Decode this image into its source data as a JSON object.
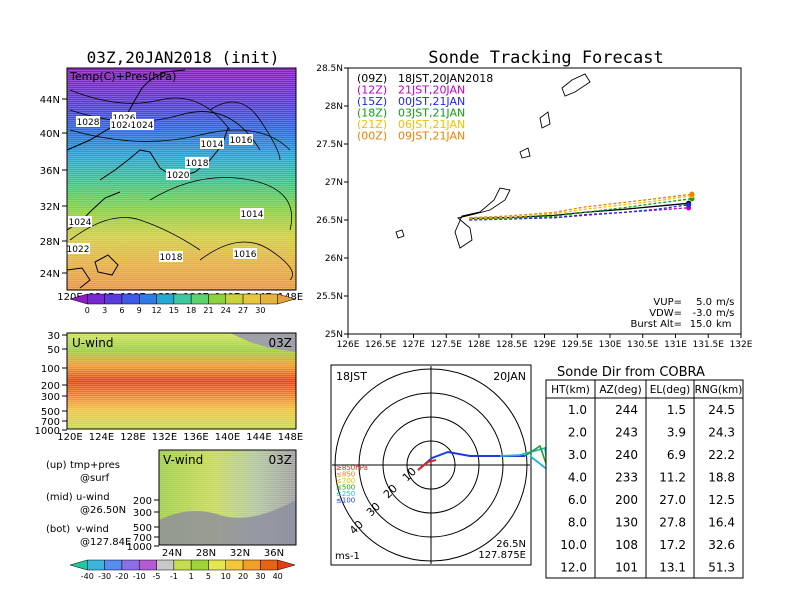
{
  "left": {
    "title": "03Z,20JAN2018 (init)",
    "map_label": "Temp(C)+Pres(hPa)",
    "lat_ticks": [
      "44N",
      "40N",
      "36N",
      "32N",
      "28N",
      "24N"
    ],
    "lon_ticks": [
      "120E",
      "124E",
      "128E",
      "132E",
      "136E",
      "140E",
      "144E",
      "148E"
    ],
    "pressure_labels": [
      "1028",
      "1026",
      "1024",
      "1024",
      "1014",
      "1016",
      "1018",
      "1020",
      "1014",
      "1024",
      "1018",
      "1016",
      "1022"
    ],
    "temp_colorbar": [
      "0",
      "3",
      "6",
      "9",
      "12",
      "15",
      "18",
      "21",
      "24",
      "27",
      "30"
    ],
    "uwind_title": "U-wind",
    "uwind_time": "03Z",
    "uwind_yticks": [
      "30",
      "50",
      "100",
      "200",
      "300",
      "500",
      "700",
      "1000"
    ],
    "vwind_title": "V-wind",
    "vwind_time": "03Z",
    "vwind_yticks": [
      "200",
      "300",
      "500",
      "700",
      "1000"
    ],
    "vwind_xticks": [
      "24N",
      "28N",
      "32N",
      "36N"
    ],
    "wind_colorbar": [
      "-40",
      "-30",
      "-20",
      "-10",
      "-5",
      "-1",
      "1",
      "5",
      "10",
      "20",
      "30",
      "40"
    ],
    "legend_lines": [
      {
        "a": "(up)",
        "b": "tmp+pres"
      },
      {
        "a": "",
        "b": "@surf"
      },
      {
        "a": "(mid)",
        "b": "u-wind"
      },
      {
        "a": "",
        "b": "@26.50N"
      },
      {
        "a": "(bot)",
        "b": "v-wind"
      },
      {
        "a": "",
        "b": "@127.84E"
      }
    ]
  },
  "track": {
    "title": "Sonde Tracking Forecast",
    "lat_ticks": [
      "28.5N",
      "28N",
      "27.5N",
      "27N",
      "26.5N",
      "26N",
      "25.5N",
      "25N"
    ],
    "lon_ticks": [
      "126E",
      "126.5E",
      "127E",
      "127.5E",
      "128E",
      "128.5E",
      "129E",
      "129.5E",
      "130E",
      "130.5E",
      "131E",
      "131.5E",
      "132E"
    ],
    "legend": [
      {
        "code": "(09Z)",
        "time": "18JST,20JAN2018",
        "color": "#000000"
      },
      {
        "code": "(12Z)",
        "time": "21JST,20JAN",
        "color": "#c000c0"
      },
      {
        "code": "(15Z)",
        "time": "00JST,21JAN",
        "color": "#1e28e6"
      },
      {
        "code": "(18Z)",
        "time": "03JST,21JAN",
        "color": "#10a010"
      },
      {
        "code": "(21Z)",
        "time": "06JST,21JAN",
        "color": "#f0c000"
      },
      {
        "code": "(00Z)",
        "time": "09JST,21JAN",
        "color": "#f08000"
      }
    ],
    "info": [
      {
        "label": "VUP=",
        "value": "5.0",
        "unit": "m/s"
      },
      {
        "label": "VDW=",
        "value": "-3.0",
        "unit": "m/s"
      },
      {
        "label": "Burst Alt=",
        "value": "15.0",
        "unit": "km"
      }
    ]
  },
  "polar": {
    "time_left": "18JST",
    "time_right": "20JAN",
    "ring_labels": [
      "10",
      "20",
      "30",
      "40"
    ],
    "pressure_legend": [
      {
        "text": "≥850hPa",
        "color": "#e62020"
      },
      {
        "text": "≤850",
        "color": "#f08000"
      },
      {
        "text": "≤700",
        "color": "#e6c000"
      },
      {
        "text": "≤500",
        "color": "#20a020"
      },
      {
        "text": "≤250",
        "color": "#20c0e0"
      },
      {
        "text": "≤100",
        "color": "#2040e0"
      }
    ],
    "unit": "ms-1",
    "pos_lat": "26.5N",
    "pos_lon": "127.875E"
  },
  "table": {
    "title": "Sonde Dir from COBRA",
    "headers": [
      "HT(km)",
      "AZ(deg)",
      "EL(deg)",
      "RNG(km)"
    ],
    "rows": [
      [
        "1.0",
        "244",
        "1.5",
        "24.5"
      ],
      [
        "2.0",
        "243",
        "3.9",
        "24.3"
      ],
      [
        "3.0",
        "240",
        "6.9",
        "22.2"
      ],
      [
        "4.0",
        "233",
        "11.2",
        "18.8"
      ],
      [
        "6.0",
        "200",
        "27.0",
        "12.5"
      ],
      [
        "8.0",
        "130",
        "27.8",
        "16.4"
      ],
      [
        "10.0",
        "108",
        "17.2",
        "32.6"
      ],
      [
        "12.0",
        "101",
        "13.1",
        "51.3"
      ]
    ]
  },
  "chart_data": [
    {
      "type": "line",
      "title": "Sonde Tracking Forecast",
      "xlim": [
        126,
        132
      ],
      "ylim": [
        25,
        28.5
      ],
      "series": [
        {
          "name": "(09Z) 18JST,20JAN2018",
          "x": [
            127.85,
            128.4,
            129.15,
            129.6,
            130.2,
            130.7,
            131.2
          ],
          "y": [
            26.52,
            26.53,
            26.56,
            26.6,
            26.64,
            26.68,
            26.72
          ]
        },
        {
          "name": "(12Z) 21JST,20JAN",
          "x": [
            127.85,
            128.4,
            129.15,
            129.6,
            130.2,
            130.7,
            131.2
          ],
          "y": [
            26.51,
            26.52,
            26.53,
            26.57,
            26.6,
            26.63,
            26.66
          ]
        },
        {
          "name": "(15Z) 00JST,21JAN",
          "x": [
            127.85,
            128.4,
            129.15,
            129.6,
            130.2,
            130.7,
            131.2
          ],
          "y": [
            26.5,
            26.51,
            26.53,
            26.56,
            26.6,
            26.64,
            26.7
          ]
        },
        {
          "name": "(18Z) 03JST,21JAN",
          "x": [
            127.85,
            128.4,
            129.15,
            129.6,
            130.2,
            130.7,
            131.25
          ],
          "y": [
            26.51,
            26.52,
            26.55,
            26.6,
            26.66,
            26.72,
            26.78
          ]
        },
        {
          "name": "(21Z) 06JST,21JAN",
          "x": [
            127.85,
            128.4,
            129.15,
            129.6,
            130.2,
            130.7,
            131.25
          ],
          "y": [
            26.52,
            26.53,
            26.58,
            26.64,
            26.7,
            26.75,
            26.82
          ]
        },
        {
          "name": "(00Z) 09JST,21JAN",
          "x": [
            127.85,
            128.4,
            129.15,
            129.6,
            130.2,
            130.7,
            131.25
          ],
          "y": [
            26.53,
            26.55,
            26.6,
            26.67,
            26.73,
            26.78,
            26.84
          ]
        }
      ]
    },
    {
      "type": "table",
      "title": "Sonde Dir from COBRA",
      "columns": [
        "HT(km)",
        "AZ(deg)",
        "EL(deg)",
        "RNG(km)"
      ],
      "rows": [
        [
          1.0,
          244,
          1.5,
          24.5
        ],
        [
          2.0,
          243,
          3.9,
          24.3
        ],
        [
          3.0,
          240,
          6.9,
          22.2
        ],
        [
          4.0,
          233,
          11.2,
          18.8
        ],
        [
          6.0,
          200,
          27.0,
          12.5
        ],
        [
          8.0,
          130,
          27.8,
          16.4
        ],
        [
          10.0,
          108,
          17.2,
          32.6
        ],
        [
          12.0,
          101,
          13.1,
          51.3
        ]
      ]
    }
  ]
}
